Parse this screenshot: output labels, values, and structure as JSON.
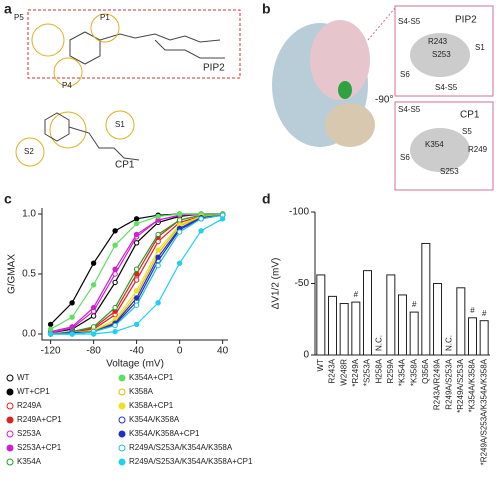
{
  "panel_a": {
    "label": "a",
    "pip2": "PIP2",
    "sites": [
      "P5",
      "P1",
      "P4"
    ],
    "cp1": "CP1",
    "cp1_sites": [
      "S1",
      "S2"
    ]
  },
  "panel_b": {
    "label": "b",
    "rotation": "-90°",
    "inset_top": {
      "title": "PIP2",
      "labels": [
        "S4-S5",
        "R243",
        "S253",
        "S1",
        "S6",
        "S4-S5"
      ]
    },
    "inset_bottom": {
      "title": "CP1",
      "labels": [
        "S4-S5",
        "S5",
        "K354",
        "R249",
        "S6",
        "S253"
      ]
    }
  },
  "chart_data": [
    {
      "type": "line",
      "panel": "c",
      "xlabel": "Voltage (mV)",
      "ylabel": "G/GMAX",
      "x": [
        -120,
        -100,
        -80,
        -60,
        -40,
        -20,
        0,
        20,
        40
      ],
      "xlim": [
        -128,
        45
      ],
      "xticks": [
        -120,
        -80,
        -40,
        0,
        40
      ],
      "ylim": [
        -0.05,
        1.05
      ],
      "yticks": [
        {
          "value": 0,
          "label": "0.0"
        },
        {
          "value": 0.5,
          "label": "0.5"
        },
        {
          "value": 1,
          "label": "1.0"
        }
      ],
      "series": [
        {
          "name": "WT",
          "color": "#000000",
          "marker": "open",
          "values": [
            0.01,
            0.04,
            0.15,
            0.43,
            0.76,
            0.93,
            0.98,
            1.0,
            1.0
          ]
        },
        {
          "name": "WT+CP1",
          "color": "#000000",
          "marker": "filled",
          "values": [
            0.08,
            0.26,
            0.59,
            0.86,
            0.96,
            0.99,
            1.0,
            1.0,
            1.0
          ]
        },
        {
          "name": "R249A",
          "color": "#e02020",
          "marker": "open",
          "values": [
            0,
            0.01,
            0.04,
            0.16,
            0.45,
            0.77,
            0.93,
            0.98,
            1.0
          ]
        },
        {
          "name": "R249A+CP1",
          "color": "#e02020",
          "marker": "filled",
          "values": [
            0,
            0.01,
            0.05,
            0.19,
            0.5,
            0.81,
            0.95,
            0.99,
            1.0
          ]
        },
        {
          "name": "S253A",
          "color": "#d020d0",
          "marker": "open",
          "values": [
            0.01,
            0.05,
            0.19,
            0.5,
            0.81,
            0.95,
            0.99,
            1.0,
            1.0
          ]
        },
        {
          "name": "S253A+CP1",
          "color": "#d020d0",
          "marker": "filled",
          "values": [
            0.02,
            0.06,
            0.22,
            0.54,
            0.83,
            0.95,
            0.99,
            1.0,
            1.0
          ]
        },
        {
          "name": "K354A",
          "color": "#20a020",
          "marker": "open",
          "values": [
            0,
            0.02,
            0.06,
            0.22,
            0.54,
            0.83,
            0.95,
            0.99,
            1.0
          ]
        },
        {
          "name": "K354A+CP1",
          "color": "#60e060",
          "marker": "filled",
          "values": [
            0.04,
            0.14,
            0.41,
            0.74,
            0.92,
            0.98,
            1.0,
            1.0,
            1.0
          ]
        },
        {
          "name": "K358A",
          "color": "#e0c000",
          "marker": "open",
          "values": [
            0,
            0.01,
            0.03,
            0.1,
            0.33,
            0.67,
            0.9,
            0.97,
            0.99
          ]
        },
        {
          "name": "K358A+CP1",
          "color": "#f0e020",
          "marker": "filled",
          "values": [
            0,
            0.01,
            0.03,
            0.12,
            0.36,
            0.7,
            0.91,
            0.98,
            0.99
          ]
        },
        {
          "name": "K354A/K358A",
          "color": "#2030c0",
          "marker": "open",
          "values": [
            0,
            0,
            0.02,
            0.08,
            0.27,
            0.61,
            0.87,
            0.96,
            0.99
          ]
        },
        {
          "name": "K354A/K358A+CP1",
          "color": "#2030c0",
          "marker": "filled",
          "values": [
            0,
            0.01,
            0.02,
            0.09,
            0.3,
            0.64,
            0.88,
            0.97,
            0.99
          ]
        },
        {
          "name": "R249A/S253A/K354A/K358A",
          "color": "#20c0e0",
          "marker": "open",
          "values": [
            0,
            0,
            0.02,
            0.07,
            0.24,
            0.57,
            0.85,
            0.96,
            0.99
          ]
        },
        {
          "name": "R249A/S253A/K354A/K358A+CP1",
          "color": "#20d0f0",
          "marker": "filled",
          "values": [
            0,
            0,
            0,
            0.02,
            0.08,
            0.26,
            0.59,
            0.86,
            0.96
          ]
        }
      ]
    },
    {
      "type": "bar",
      "panel": "d",
      "ylabel": "ΔV1/2 (mV)",
      "color": "#ffffff",
      "categories": [
        "WT",
        "R243A",
        "W248R",
        "*R249A",
        "*S253A",
        "H258A",
        "R259A",
        "*K354A",
        "*K358A",
        "Q356A",
        "R243A/R249A",
        "R249A/S253A",
        "*R249A/S253A",
        "*K354A/K358A",
        "*R249A/S253A/K354A/K358A"
      ],
      "values": [
        -56,
        -41,
        -36,
        -37,
        -59,
        null,
        -56,
        -42,
        -30,
        -78,
        -50,
        null,
        -47,
        -26,
        -24
      ],
      "annotations": [
        null,
        null,
        null,
        "#",
        null,
        "N.C.",
        null,
        null,
        "#",
        null,
        null,
        "N.C.",
        null,
        "#",
        "#"
      ],
      "ylim": [
        0,
        -100
      ],
      "yticks": [
        -100,
        -50,
        0
      ]
    }
  ]
}
